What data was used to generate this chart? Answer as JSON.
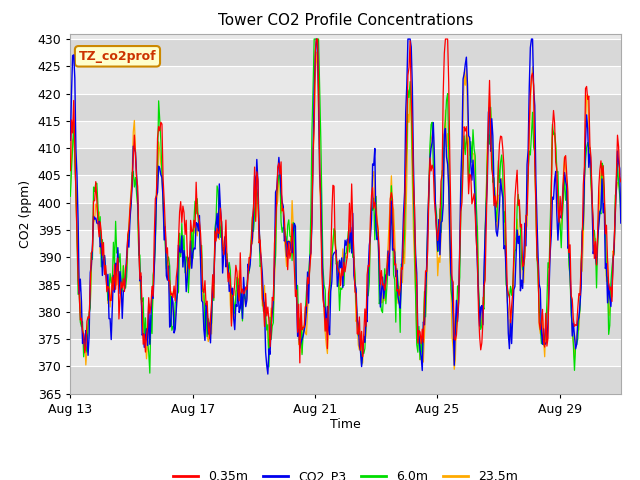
{
  "title": "Tower CO2 Profile Concentrations",
  "xlabel": "Time",
  "ylabel": "CO2 (ppm)",
  "ylim": [
    365,
    431
  ],
  "yticks": [
    365,
    370,
    375,
    380,
    385,
    390,
    395,
    400,
    405,
    410,
    415,
    420,
    425,
    430
  ],
  "xtick_labels": [
    "Aug 13",
    "Aug 17",
    "Aug 21",
    "Aug 25",
    "Aug 29"
  ],
  "xtick_positions": [
    0,
    4,
    8,
    12,
    16
  ],
  "xlim": [
    0,
    18
  ],
  "legend_labels": [
    "0.35m",
    "CO2_P3",
    "6.0m",
    "23.5m"
  ],
  "legend_colors": [
    "#ff0000",
    "#0000ee",
    "#00dd00",
    "#ffaa00"
  ],
  "annotation_text": "TZ_co2prof",
  "annotation_bg": "#ffffcc",
  "annotation_border": "#cc8800",
  "fig_bg": "#ffffff",
  "plot_bg": "#e8e8e8",
  "band_colors": [
    "#e0e0e0",
    "#d0d0d0"
  ],
  "grid_color": "#f5f5f5",
  "n_points": 500
}
